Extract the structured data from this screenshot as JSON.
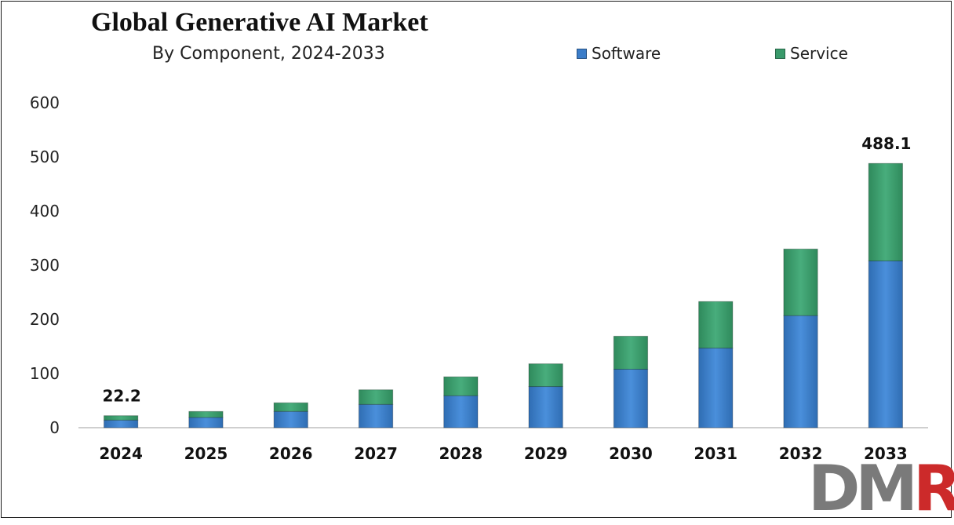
{
  "chart_data": {
    "type": "bar",
    "stacked": true,
    "title": "Global Generative AI Market",
    "subtitle": "By Component, 2024-2033",
    "categories": [
      "2024",
      "2025",
      "2026",
      "2027",
      "2028",
      "2029",
      "2030",
      "2031",
      "2032",
      "2033"
    ],
    "series": [
      {
        "name": "Software",
        "color": "#3b7dc9",
        "values": [
          14,
          19,
          30,
          43,
          59,
          76,
          108,
          147,
          207,
          308
        ]
      },
      {
        "name": "Service",
        "color": "#3a9a6b",
        "values": [
          8.2,
          11,
          16,
          27,
          35,
          42,
          61,
          86,
          123,
          180.1
        ]
      }
    ],
    "ylim": [
      0,
      600
    ],
    "yticks": [
      0,
      100,
      200,
      300,
      400,
      500,
      600
    ],
    "data_labels": [
      {
        "category": "2024",
        "text": "22.2"
      },
      {
        "category": "2033",
        "text": "488.1"
      }
    ],
    "legend_position": "top-right",
    "grid": false
  },
  "logo": {
    "text_dm": "DM",
    "text_r": "R",
    "color_dm": "#7a7a7a",
    "color_r": "#cc2a2a"
  }
}
